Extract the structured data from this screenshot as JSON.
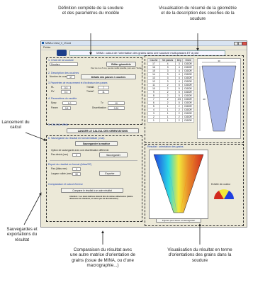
{
  "annotations": {
    "top_left": "Définition complète de la soudure et des paramètres du modèle",
    "top_right": "Visualisation du résumé de la géométrie et de la description des couches de la soudure",
    "left_launch": "Lancement du calcul",
    "left_save": "Sauvegardes et exportations du résultat",
    "bottom_middle": "Comparaison du résultat avec une autre matrice d'orientation de grains (issue de MINA, ou d'une macrographie...)",
    "bottom_right": "Visualisation du résultat en terme d'orientations des grains dans la soudure"
  },
  "window": {
    "title": "MINA v1 test_V_VCord",
    "menu": "Fichier",
    "banner": "MINA : calcul de l'orientation des grains dans une soudure multi-passes ET à plat"
  },
  "form": {
    "sec1": "1. Choix de la soudure",
    "weld_select": "Soudure",
    "edit_geom_button": "Editer géométrie",
    "geom_note": "Pour les 4 ou 5 mm, pas de modifs possible, pour avoir \"Fichier\"",
    "sec2": "2. Description des couches",
    "layers_label": "Nombre de couches",
    "layers_value": "17",
    "passes_button": "Détails des passes / couches",
    "sec3": "3. Paramètres de recouvrement et d'inclinaison des passes",
    "rl_label": "RL",
    "rl_value": "0.3",
    "rv_label": "RV",
    "rv_value": "0.4",
    "theta_b_label": "ThetaB",
    "theta_b_value": "7",
    "theta_c_label": "ThetaC",
    "theta_c_value": "11",
    "sec4": "4. Paramètres du modèle",
    "epsp_label": "Epsp",
    "epsp_value": "1.0",
    "tv_label": "Tv",
    "tv_value": "10",
    "param_label": "Param",
    "param_value": "0.5",
    "discretisation_label": "Discrétisation",
    "discretisation_value": "0.20",
    "sec5": "5. CALCUL MINA",
    "launch_button": "LANCER LE CALCUL DES ORIENTATIONS",
    "sec6": "6. Sauvegarde du résultat en format Matlab (.mat)",
    "save_button": "Sauvegarder la matrice",
    "save_option_label": "Option de sauvegarde avec une discrétisation différente",
    "step_label": "Pas désiré (mm)",
    "step_value": "2",
    "save2_button": "Sauvegarder",
    "sec7": "Export du résultat en format (Atlas/ZZ)",
    "step2_label": "Pas (Atlas mm)",
    "step2_value": "2",
    "width_label": "Largeur voilée (mm)",
    "width_value": "30",
    "export_button": "Exporter",
    "sec8": "Comparaison et calcul d'erreur",
    "compare_button": "Comparer le résultat à un autre résultat",
    "compare_note": "Attention : Les deux matrices doivent être de mêmes dimensions (même dimension du chanfrein, et même pas de discrétisation)"
  },
  "layers": {
    "headers": [
      "Couche",
      "Nb passes",
      "Dep",
      "Ordre"
    ],
    "rows": [
      [
        "17",
        "4",
        "3",
        "DG/DR"
      ],
      [
        "16",
        "3",
        "4",
        "DG/DR"
      ],
      [
        "15",
        "3",
        "4",
        "DG/DR"
      ],
      [
        "14",
        "3",
        "4",
        "DG/DR"
      ],
      [
        "13",
        "3",
        "4",
        "DG/DR"
      ],
      [
        "12",
        "3",
        "4",
        "DG/DR"
      ],
      [
        "11",
        "2",
        "5",
        "DG/DR"
      ],
      [
        "10",
        "2",
        "5",
        "DG/DR"
      ],
      [
        "9",
        "2",
        "5",
        "DG/DR"
      ],
      [
        "8",
        "2",
        "5",
        "DG/DR"
      ],
      [
        "7",
        "2",
        "2.5",
        "DG/DR"
      ],
      [
        "6",
        "2",
        "5",
        "DG/DR"
      ],
      [
        "5",
        "1",
        "2",
        "DG/DR"
      ],
      [
        "4",
        "1",
        "2",
        "DG/DR"
      ],
      [
        "3",
        "1",
        "2",
        "DG/DR"
      ],
      [
        "2",
        "1",
        "2",
        "DG/DR"
      ],
      [
        "1",
        "1",
        "2",
        "DG/DR"
      ]
    ]
  },
  "geometry": {
    "top_width": "30",
    "height": "40"
  },
  "result": {
    "title": "Résultat : orientation des grains",
    "figure_caption": "Figures pour tracer et sauvegarder",
    "colorbar_label": "Echelle de couleur"
  },
  "colors": {
    "annotation_border": "#333333",
    "section_title": "#1a3fae",
    "weld_fill": "#aab8e8"
  }
}
